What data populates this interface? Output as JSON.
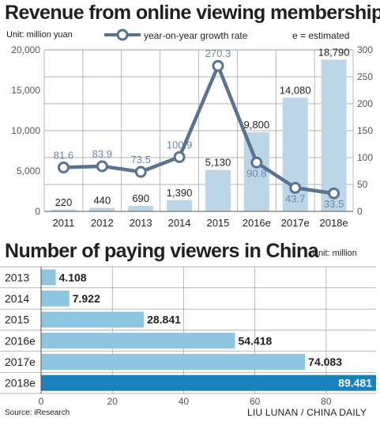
{
  "chart_data": [
    {
      "type": "bar+line",
      "title": "Revenue from online viewing memberships",
      "unit_note": "Unit: million yuan",
      "estimated_note": "e = estimated",
      "categories": [
        "2011",
        "2012",
        "2013",
        "2014",
        "2015",
        "2016e",
        "2017e",
        "2018e"
      ],
      "bar_series": {
        "values": [
          220,
          440,
          690,
          1390,
          5130,
          9800,
          14080,
          18790
        ],
        "value_labels": [
          "220",
          "440",
          "690",
          "1,390",
          "5,130",
          "9,800",
          "14,080",
          "18,790"
        ],
        "y_axis": "left",
        "ylim": [
          0,
          20000
        ],
        "yticks": [
          "0",
          "5,000",
          "10,000",
          "15,000",
          "20,000"
        ]
      },
      "line_series": {
        "name": "year-on-year growth rate",
        "values": [
          81.6,
          83.9,
          73.5,
          100.9,
          270.3,
          90.8,
          43.7,
          33.5
        ],
        "value_labels": [
          "81.6",
          "83.9",
          "73.5",
          "100.9",
          "270.3",
          "90.8",
          "43.7",
          "33.5"
        ],
        "y_axis": "right",
        "ylim": [
          0,
          300
        ],
        "yticks": [
          "0",
          "50",
          "100",
          "150",
          "200",
          "250",
          "300"
        ]
      },
      "grid": true,
      "legend_position": "top"
    },
    {
      "type": "bar",
      "orientation": "horizontal",
      "title": "Number of paying viewers in China",
      "unit_note": "Unit: million",
      "categories": [
        "2013",
        "2014",
        "2015",
        "2016e",
        "2017e",
        "2018e"
      ],
      "values": [
        4.108,
        7.922,
        28.841,
        54.418,
        74.083,
        89.481
      ],
      "value_labels": [
        "4.108",
        "7.922",
        "28.841",
        "54.418",
        "74.083",
        "89.481"
      ],
      "xlim": [
        0,
        94
      ],
      "xticks": [
        "0",
        "20",
        "40",
        "60",
        "80"
      ],
      "grid": true
    }
  ],
  "footer": {
    "source": "Source: iResearch",
    "credit": "LIU LUNAN / CHINA DAILY"
  },
  "colors": {
    "bar": "#bcd6e8",
    "line": "#5a7393",
    "grid": "#999999",
    "hbar": "#8ec6e2",
    "hbar_highlight": "#1b81bc",
    "line_label": "#6c87aa"
  }
}
